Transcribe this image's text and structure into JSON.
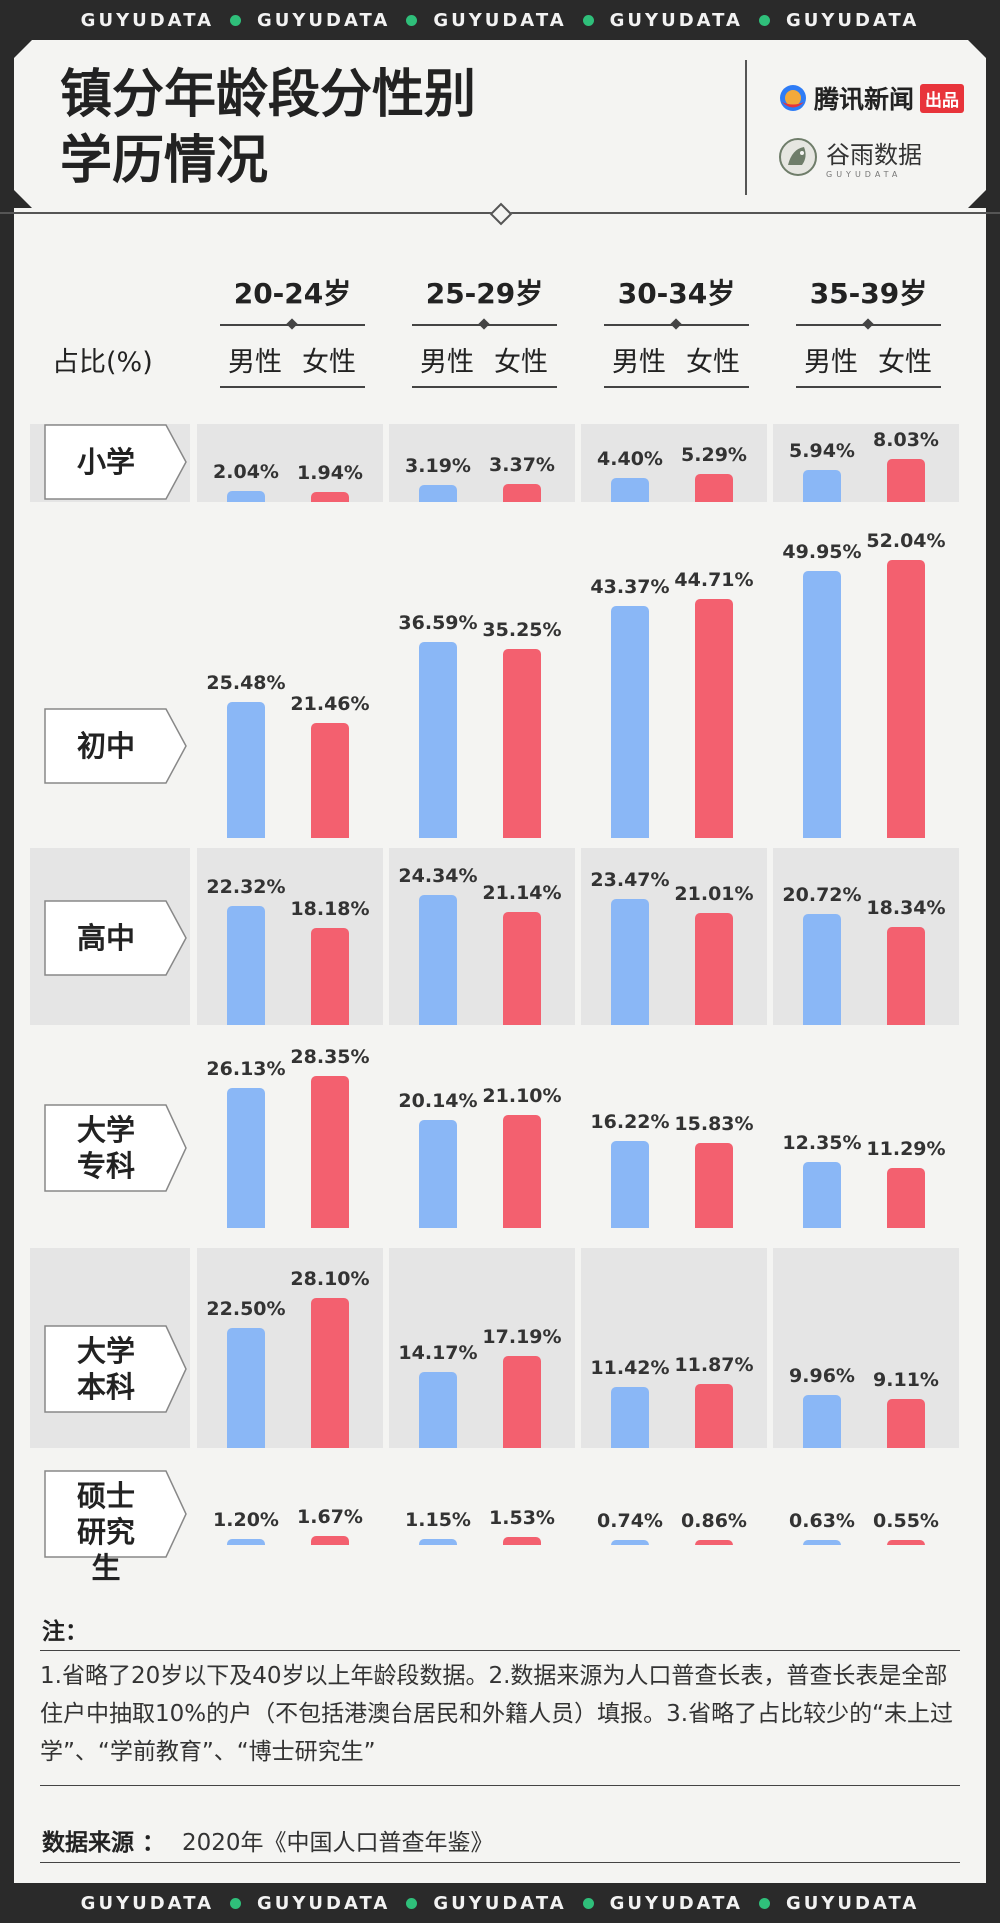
{
  "ticker": {
    "word": "GUYUDATA",
    "repeat": 5
  },
  "header": {
    "title_line1": "镇分年龄段分性别",
    "title_line2": "学历情况",
    "brand_tencent": "腾讯新闻",
    "brand_tencent_badge": "出品",
    "brand_guyu": "谷雨数据",
    "brand_guyu_sub": "GUYUDATA"
  },
  "axis": {
    "ratio_label": "占比(%)",
    "male_label": "男性",
    "female_label": "女性"
  },
  "colors": {
    "male": "#8ab7f6",
    "female": "#f3606f"
  },
  "chart_data": {
    "type": "bar",
    "title": "镇分年龄段分性别学历情况",
    "categories": [
      "20-24岁",
      "25-29岁",
      "30-34岁",
      "35-39岁"
    ],
    "series_names": [
      "男性",
      "女性"
    ],
    "unit": "%",
    "rows": [
      {
        "level": "小学",
        "male": [
          2.04,
          3.19,
          4.4,
          5.94
        ],
        "female": [
          1.94,
          3.37,
          5.29,
          8.03
        ]
      },
      {
        "level": "初中",
        "male": [
          25.48,
          36.59,
          43.37,
          49.95
        ],
        "female": [
          21.46,
          35.25,
          44.71,
          52.04
        ]
      },
      {
        "level": "高中",
        "male": [
          22.32,
          24.34,
          23.47,
          20.72
        ],
        "female": [
          18.18,
          21.14,
          21.01,
          18.34
        ]
      },
      {
        "level": "大学专科",
        "male": [
          26.13,
          20.14,
          16.22,
          12.35
        ],
        "female": [
          28.35,
          21.1,
          15.83,
          11.29
        ]
      },
      {
        "level": "大学本科",
        "male": [
          22.5,
          14.17,
          11.42,
          9.96
        ],
        "female": [
          28.1,
          17.19,
          11.87,
          9.11
        ]
      },
      {
        "level": "硕士研究生",
        "male": [
          1.2,
          1.15,
          0.74,
          0.63
        ],
        "female": [
          1.67,
          1.53,
          0.86,
          0.55
        ]
      }
    ]
  },
  "notes": {
    "title": "注：",
    "text": "1.省略了20岁以下及40岁以上年龄段数据。2.数据来源为人口普查长表，普查长表是全部住户中抽取10%的户（不包括港澳台居民和外籍人员）填报。3.省略了占比较少的“未上过学”、“学前教育”、“博士研究生”"
  },
  "source": {
    "label": "数据来源 ：",
    "text": "2020年《中国人口普查年鉴》"
  }
}
